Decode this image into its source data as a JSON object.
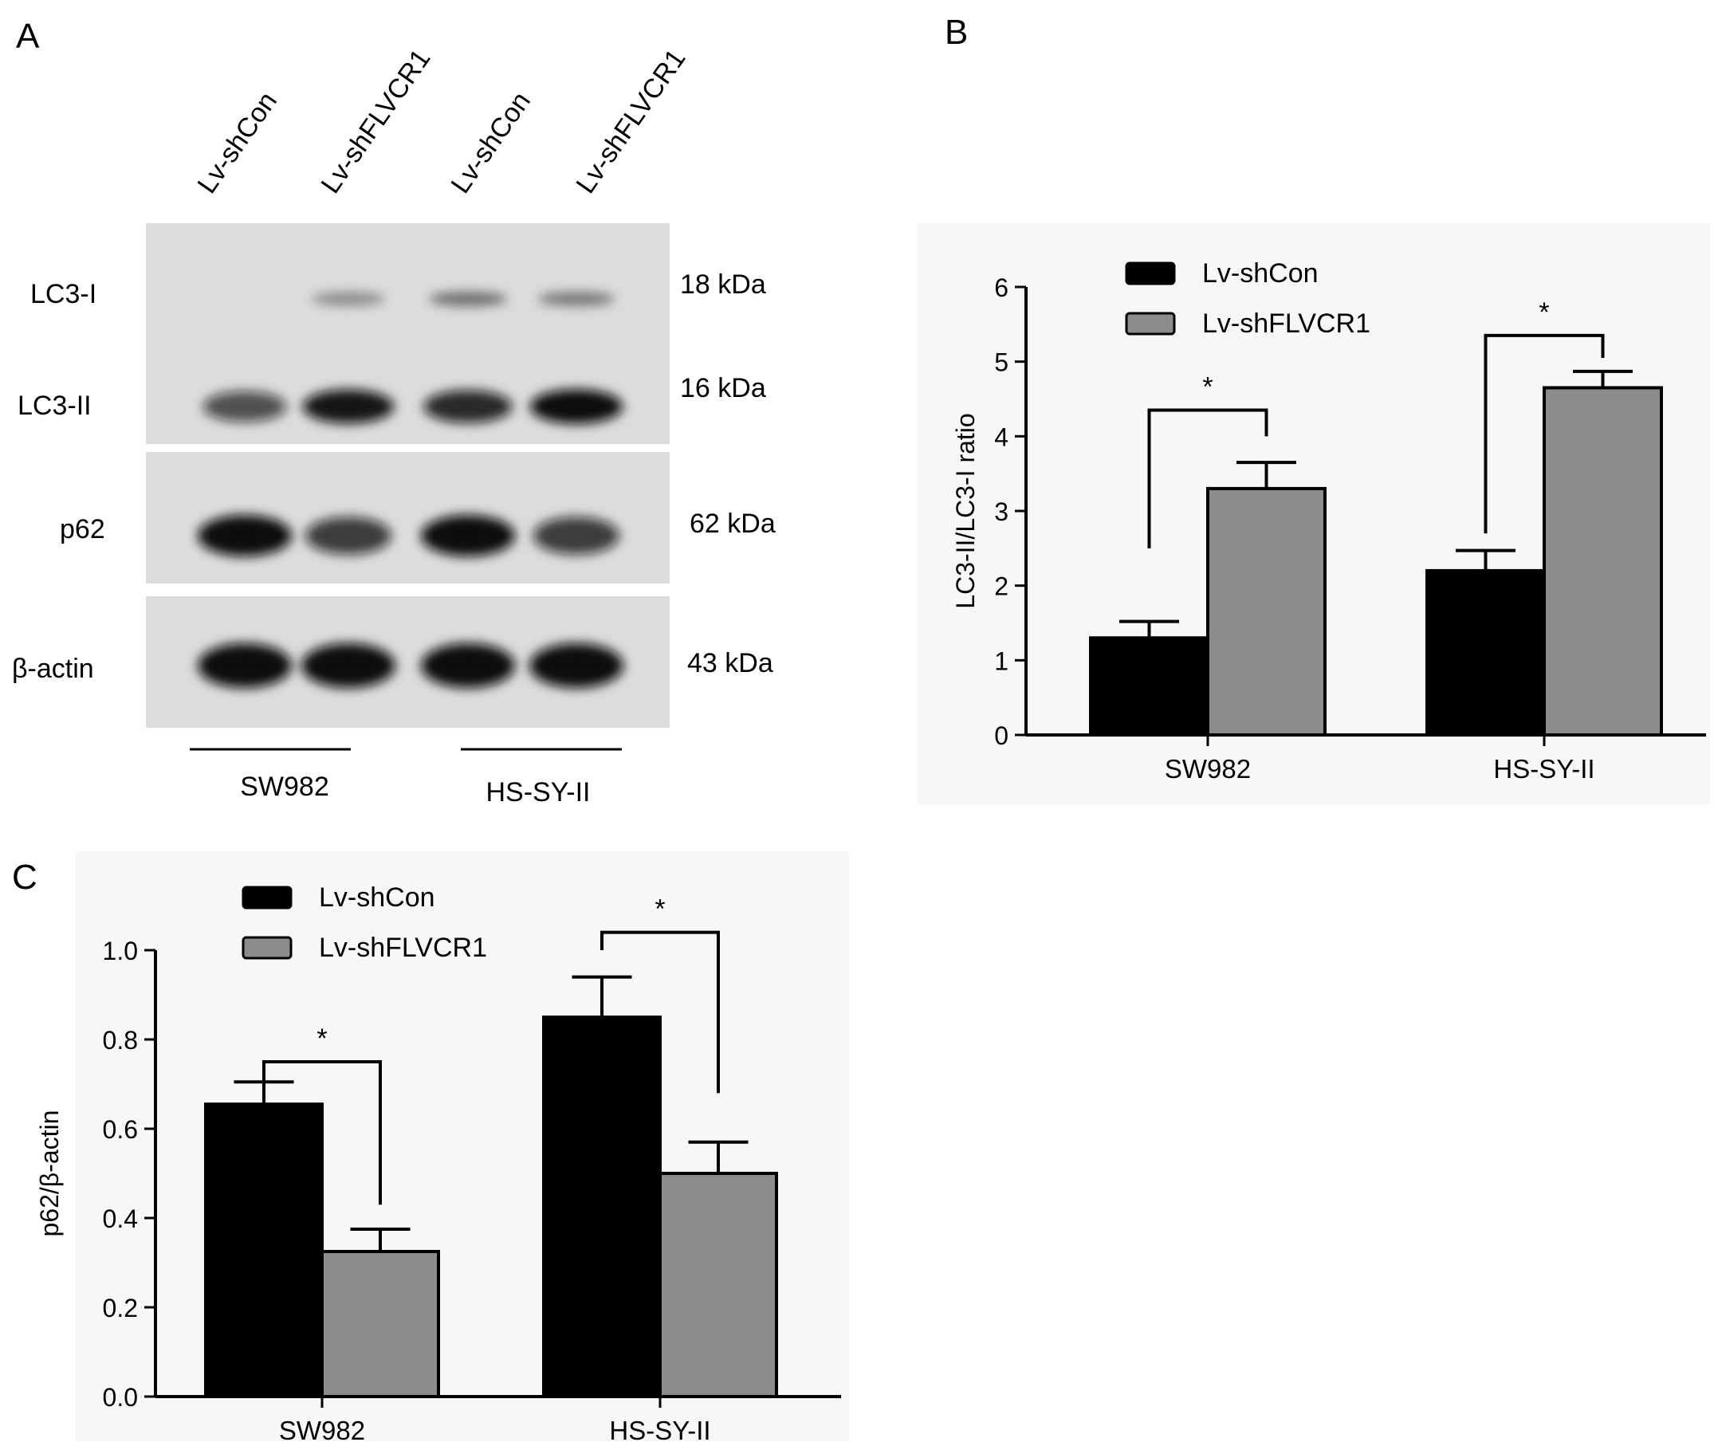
{
  "panels": {
    "a": "A",
    "b": "B",
    "c": "C"
  },
  "western_blot": {
    "lanes": [
      "Lv-shCon",
      "Lv-shFLVCR1",
      "Lv-shCon",
      "Lv-shFLVCR1"
    ],
    "proteins": [
      {
        "label": "LC3-I",
        "size": "18 kDa"
      },
      {
        "label": "LC3-II",
        "size": "16 kDa"
      },
      {
        "label": "p62",
        "size": "62 kDa"
      },
      {
        "label": "β-actin",
        "size": "43 kDa"
      }
    ],
    "groups": [
      "SW982",
      "HS-SY-II"
    ],
    "colors": {
      "membrane": "#dcdcdc",
      "band": "#0a0a0a"
    },
    "band_levels": {
      "LC3-I": [
        0.0,
        0.25,
        0.4,
        0.35
      ],
      "LC3-II": [
        0.6,
        0.9,
        0.8,
        0.95
      ],
      "p62": [
        1.0,
        0.7,
        1.0,
        0.7
      ],
      "β-actin": [
        1.0,
        1.0,
        1.0,
        1.0
      ]
    }
  },
  "chart_data": [
    {
      "panel": "B",
      "type": "bar",
      "categories": [
        "SW982",
        "HS-SY-II"
      ],
      "series": [
        {
          "name": "Lv-shCon",
          "values": [
            1.3,
            2.2
          ],
          "errors": [
            0.22,
            0.27
          ],
          "color": "#000000"
        },
        {
          "name": "Lv-shFLVCR1",
          "values": [
            3.3,
            4.65
          ],
          "errors": [
            0.35,
            0.22
          ],
          "color": "#8c8c8c"
        }
      ],
      "title": "",
      "xlabel": "",
      "ylabel": "LC3-II/LC3-I ratio",
      "ylim": [
        0,
        6
      ],
      "yticks": [
        "0",
        "1",
        "2",
        "3",
        "4",
        "5",
        "6"
      ],
      "significance": [
        "*",
        "*"
      ],
      "legend": "top-left",
      "grid": false
    },
    {
      "panel": "C",
      "type": "bar",
      "categories": [
        "SW982",
        "HS-SY-II"
      ],
      "series": [
        {
          "name": "Lv-shCon",
          "values": [
            0.655,
            0.85
          ],
          "errors": [
            0.05,
            0.09
          ],
          "color": "#000000"
        },
        {
          "name": "Lv-shFLVCR1",
          "values": [
            0.325,
            0.5
          ],
          "errors": [
            0.05,
            0.07
          ],
          "color": "#8c8c8c"
        }
      ],
      "title": "",
      "xlabel": "",
      "ylabel": "p62/β-actin",
      "ylim": [
        0,
        1.0
      ],
      "yticks": [
        "0.0",
        "0.2",
        "0.4",
        "0.6",
        "0.8",
        "1.0"
      ],
      "significance": [
        "*",
        "*"
      ],
      "legend": "top-left",
      "grid": false
    }
  ]
}
